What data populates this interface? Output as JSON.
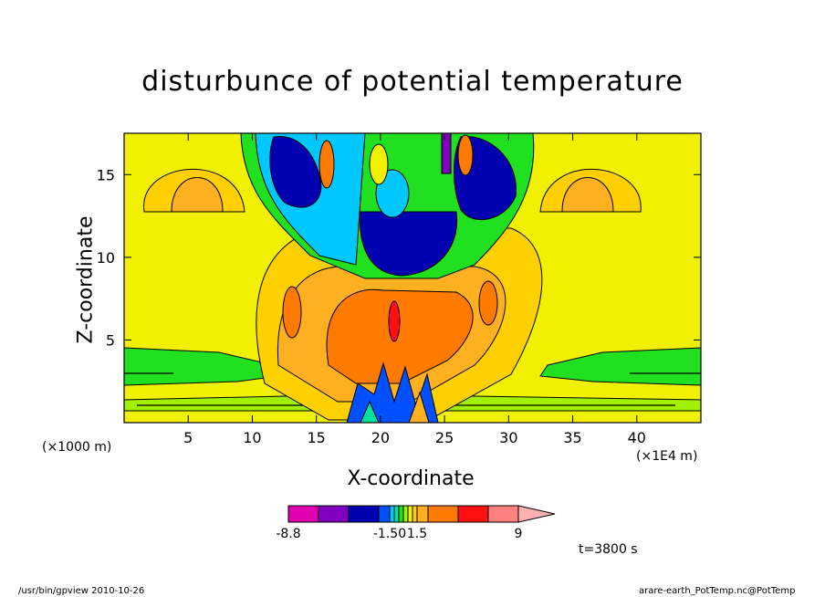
{
  "chart_data": {
    "type": "heatmap",
    "title": "disturbunce of potential temperature",
    "xlabel": "X-coordinate",
    "ylabel": "Z-coordinate",
    "x_ticks": [
      "5",
      "10",
      "15",
      "20",
      "25",
      "30",
      "35",
      "40"
    ],
    "y_ticks": [
      "5",
      "10",
      "15"
    ],
    "xlim": [
      0,
      45
    ],
    "ylim": [
      0,
      17.5
    ],
    "x_units": "(×1E4 m)",
    "z_units": "(×1000 m)",
    "colorbar": {
      "tick_labels": [
        "-8.8",
        "-1.50",
        "1.5",
        "9"
      ],
      "colors": [
        "#e000b0",
        "#8000c0",
        "#0000b0",
        "#0050ff",
        "#00c8ff",
        "#00e0a0",
        "#20e020",
        "#a0f000",
        "#f0f000",
        "#ffd000",
        "#ffb020",
        "#ff7a00",
        "#ff1010",
        "#ff8080",
        "#ffb0b0"
      ]
    },
    "time_label": "t=3800 s",
    "footer_left": "/usr/bin/gpview   2010-10-26",
    "footer_right": "arare-earth_PotTemp.nc@PotTemp"
  }
}
